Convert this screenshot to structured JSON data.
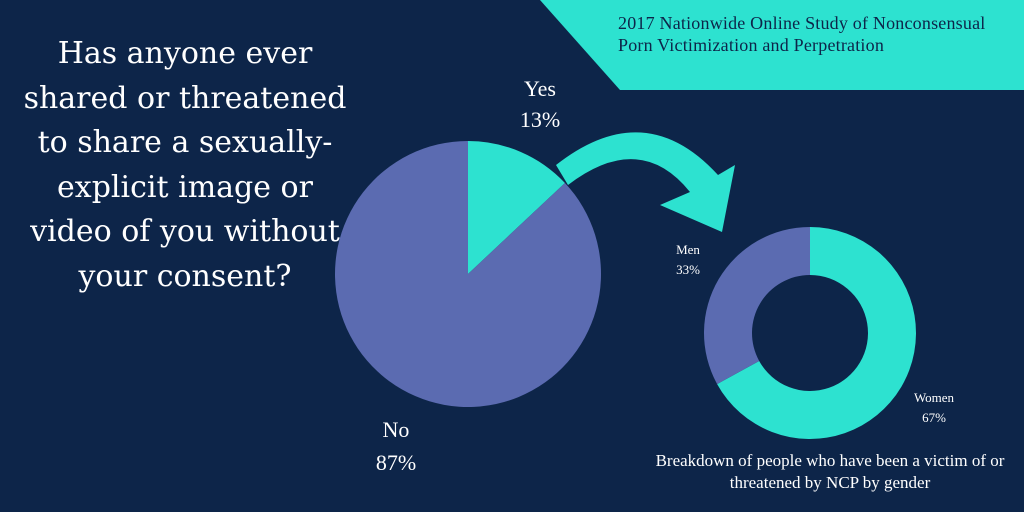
{
  "source_title": "2017 Nationwide Online Study of Nonconsensual Porn Victimization and Perpetration",
  "question": "Has anyone ever shared or threatened to share a sexually-explicit image or video of you without your consent?",
  "caption": "Breakdown of people who have been a victim of or threatened by NCP by gender",
  "colors": {
    "background": "#0d2549",
    "accent": "#2de2d0",
    "slate": "#5b6bb1"
  },
  "chart_data": [
    {
      "type": "pie",
      "title": "",
      "slices": [
        {
          "label": "Yes",
          "value": 13,
          "value_label": "13%",
          "color": "#2de2d0"
        },
        {
          "label": "No",
          "value": 87,
          "value_label": "87%",
          "color": "#5b6bb1"
        }
      ]
    },
    {
      "type": "pie",
      "style": "donut",
      "title": "",
      "slices": [
        {
          "label": "Women",
          "value": 67,
          "value_label": "67%",
          "color": "#2de2d0"
        },
        {
          "label": "Men",
          "value": 33,
          "value_label": "33%",
          "color": "#5b6bb1"
        }
      ]
    }
  ]
}
